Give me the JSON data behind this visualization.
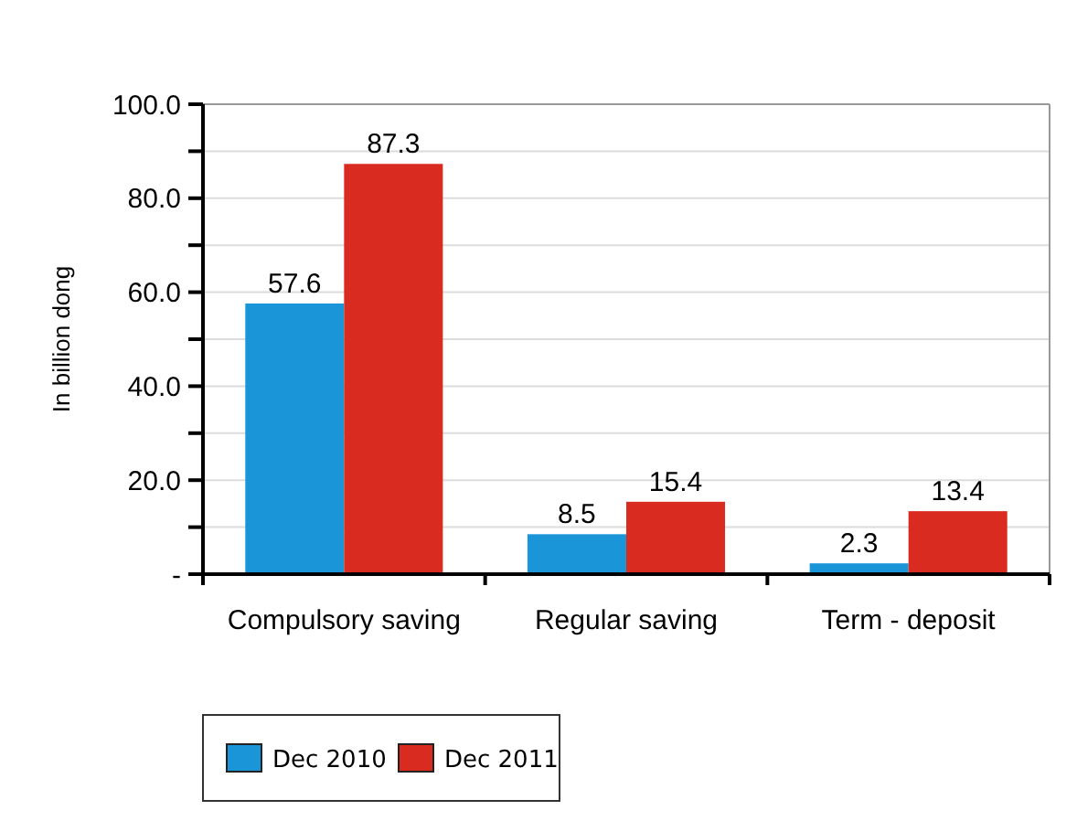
{
  "chart_data": {
    "type": "bar",
    "ylabel": "In billion dong",
    "categories": [
      "Compulsory saving",
      "Regular saving",
      "Term - deposit"
    ],
    "series": [
      {
        "name": "Dec 2010",
        "color": "#1a96d8",
        "values": [
          57.6,
          8.5,
          2.3
        ]
      },
      {
        "name": "Dec 2011",
        "color": "#d92b20",
        "values": [
          87.3,
          15.4,
          13.4
        ]
      }
    ],
    "ylim": [
      0,
      100
    ],
    "yticks": [
      {
        "value": 0,
        "label": "-"
      },
      {
        "value": 10,
        "label": null
      },
      {
        "value": 20,
        "label": "20.0"
      },
      {
        "value": 30,
        "label": null
      },
      {
        "value": 40,
        "label": "40.0"
      },
      {
        "value": 50,
        "label": null
      },
      {
        "value": 60,
        "label": "60.0"
      },
      {
        "value": 70,
        "label": null
      },
      {
        "value": 80,
        "label": "80.0"
      },
      {
        "value": 90,
        "label": null
      },
      {
        "value": 100,
        "label": "100.0"
      }
    ],
    "grid": "y",
    "legend": "bottom left",
    "data_labels": true
  }
}
